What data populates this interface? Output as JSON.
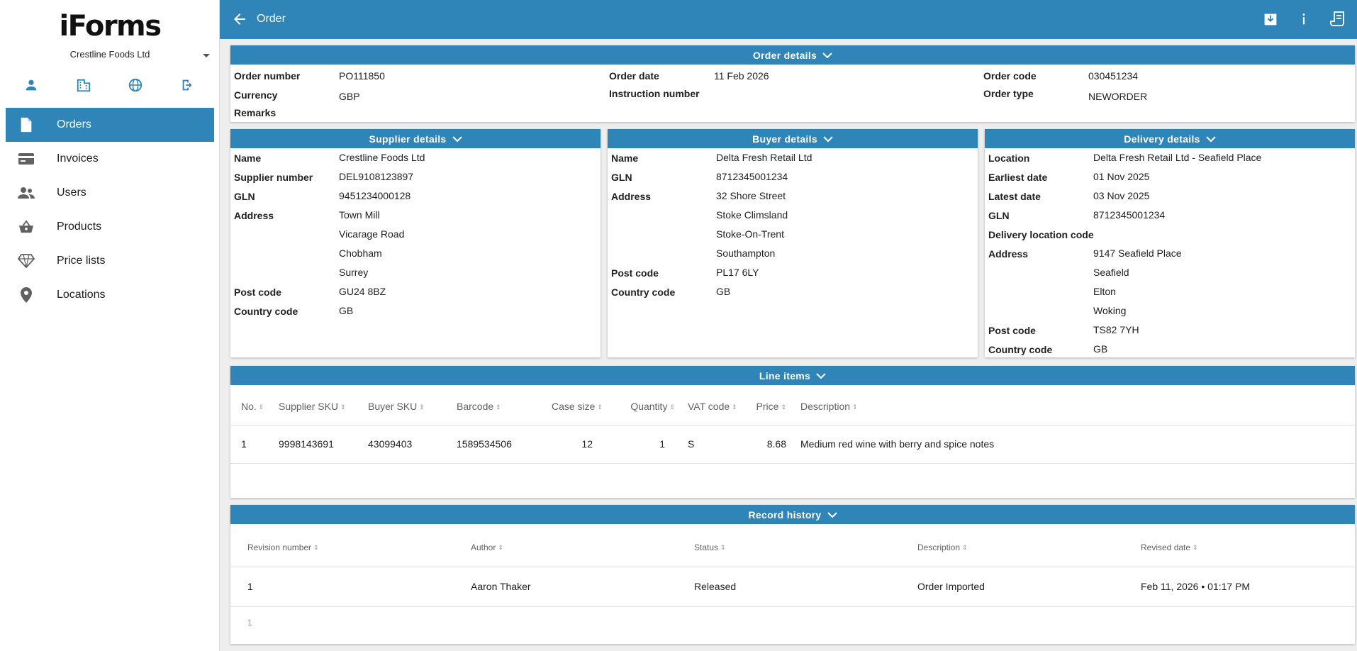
{
  "app": {
    "logo": "iForms",
    "company": "Crestline Foods Ltd"
  },
  "sidebar": {
    "icons": [
      "person-icon",
      "building-icon",
      "globe-icon",
      "logout-icon"
    ],
    "items": [
      {
        "label": "Orders",
        "icon": "document-icon",
        "active": true
      },
      {
        "label": "Invoices",
        "icon": "card-icon"
      },
      {
        "label": "Users",
        "icon": "people-icon"
      },
      {
        "label": "Products",
        "icon": "basket-icon"
      },
      {
        "label": "Price lists",
        "icon": "diamond-icon"
      },
      {
        "label": "Locations",
        "icon": "pin-icon"
      }
    ]
  },
  "topbar": {
    "title": "Order",
    "actions": [
      "download-icon",
      "info-icon",
      "receipt-icon"
    ]
  },
  "order_details": {
    "title": "Order details",
    "order_number_label": "Order number",
    "order_number": "PO111850",
    "currency_label": "Currency",
    "currency": "GBP",
    "remarks_label": "Remarks",
    "order_date_label": "Order date",
    "order_date": "11 Feb 2026",
    "instruction_label": "Instruction number",
    "order_code_label": "Order code",
    "order_code": "030451234",
    "order_type_label": "Order type",
    "order_type": "NEWORDER"
  },
  "supplier": {
    "title": "Supplier details",
    "name_label": "Name",
    "name": "Crestline Foods Ltd",
    "supplier_number_label": "Supplier number",
    "supplier_number": "DEL9108123897",
    "gln_label": "GLN",
    "gln": "9451234000128",
    "address_label": "Address",
    "address": [
      "Town Mill",
      "Vicarage Road",
      "Chobham",
      "Surrey"
    ],
    "post_code_label": "Post code",
    "post_code": "GU24 8BZ",
    "country_label": "Country code",
    "country": "GB"
  },
  "buyer": {
    "title": "Buyer details",
    "name_label": "Name",
    "name": "Delta Fresh Retail Ltd",
    "gln_label": "GLN",
    "gln": "8712345001234",
    "address_label": "Address",
    "address": [
      "32 Shore Street",
      "Stoke Climsland",
      "Stoke-On-Trent",
      "Southampton"
    ],
    "post_code_label": "Post code",
    "post_code": "PL17 6LY",
    "country_label": "Country code",
    "country": "GB"
  },
  "delivery": {
    "title": "Delivery details",
    "location_label": "Location",
    "location": "Delta Fresh Retail Ltd - Seafield Place",
    "earliest_label": "Earliest date",
    "earliest": "01 Nov 2025",
    "latest_label": "Latest date",
    "latest": "03 Nov 2025",
    "gln_label": "GLN",
    "gln": "8712345001234",
    "dlc_label": "Delivery location code",
    "address_label": "Address",
    "address": [
      "9147 Seafield Place",
      "Seafield",
      "Elton",
      "Woking"
    ],
    "post_code_label": "Post code",
    "post_code": "TS82 7YH",
    "country_label": "Country code",
    "country": "GB"
  },
  "line_items": {
    "title": "Line items",
    "columns": [
      "No.",
      "Supplier SKU",
      "Buyer SKU",
      "Barcode",
      "Case size",
      "Quantity",
      "VAT code",
      "Price",
      "Description"
    ],
    "rows": [
      [
        "1",
        "9998143691",
        "43099403",
        "1589534506",
        "12",
        "1",
        "S",
        "8.68",
        "Medium red wine with berry and spice notes"
      ]
    ]
  },
  "history": {
    "title": "Record history",
    "columns": [
      "Revision number",
      "Author",
      "Status",
      "Description",
      "Revised date"
    ],
    "rows": [
      [
        "1",
        "Aaron Thaker",
        "Released",
        "Order Imported",
        "Feb 11, 2026 • 01:17 PM"
      ]
    ],
    "page": "1"
  },
  "colors": {
    "primary": "#2f84b8",
    "background": "#eeeeee"
  }
}
